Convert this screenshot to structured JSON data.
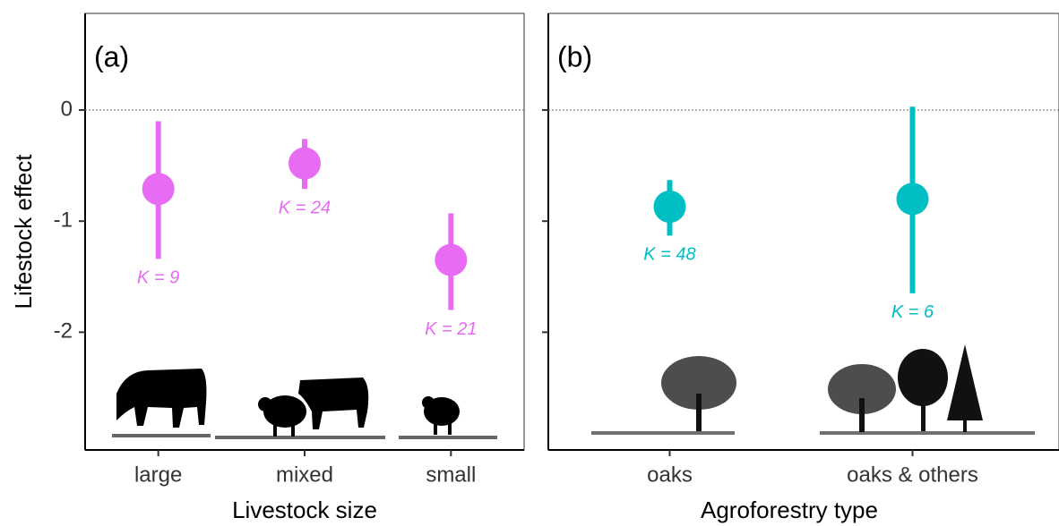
{
  "chart_data": [
    {
      "type": "pointrange",
      "panel_label": "(a)",
      "x_label": "Livestock size",
      "y_label": "Lifestock effect",
      "categories": [
        "large",
        "mixed",
        "small"
      ],
      "values": [
        -0.71,
        -0.48,
        -1.35
      ],
      "lower": [
        -1.34,
        -0.71,
        -1.8
      ],
      "upper": [
        -0.1,
        -0.26,
        -0.93
      ],
      "point_labels": [
        "K = 9",
        "K = 24",
        "K = 21"
      ],
      "color": "#e76bf3",
      "ylim": [
        -3.06,
        0.87
      ],
      "yticks": [
        0,
        -1,
        -2
      ],
      "reference_line": 0
    },
    {
      "type": "pointrange",
      "panel_label": "(b)",
      "x_label": "Agroforestry type",
      "categories": [
        "oaks",
        "oaks & others"
      ],
      "values": [
        -0.87,
        -0.8
      ],
      "lower": [
        -1.13,
        -1.65
      ],
      "upper": [
        -0.63,
        0.03
      ],
      "point_labels": [
        "K = 48",
        "K = 6"
      ],
      "color": "#00bfc4",
      "ylim": [
        -3.06,
        0.87
      ],
      "yticks": [
        0,
        -1,
        -2
      ],
      "reference_line": 0
    }
  ]
}
